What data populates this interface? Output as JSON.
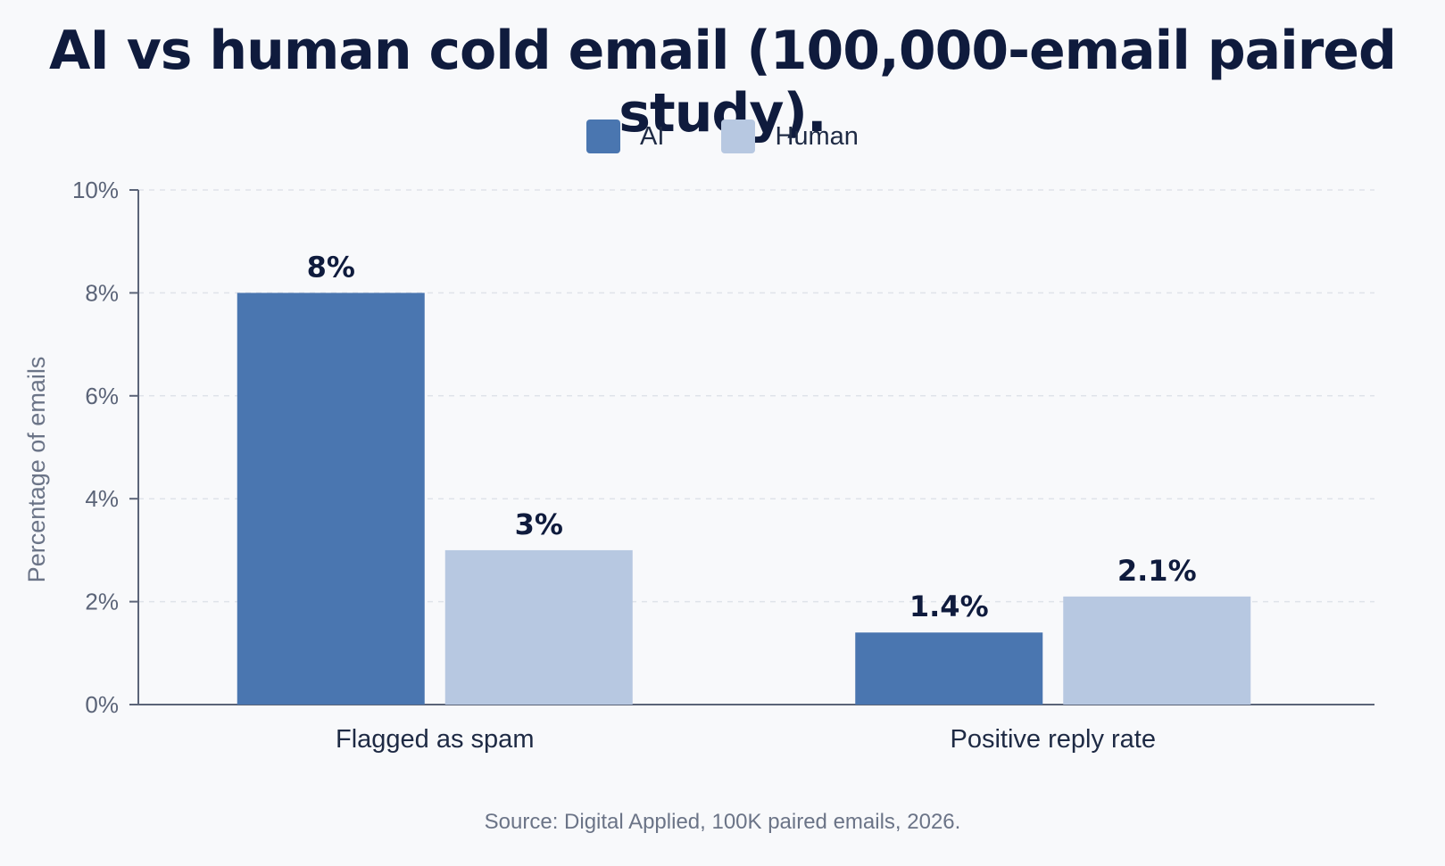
{
  "chart_data": {
    "type": "bar",
    "title": "AI vs human cold email (100,000-email paired study).",
    "ylabel": "Percentage of emails",
    "xlabel": "",
    "ylim": [
      0,
      10
    ],
    "yticks": [
      0,
      2,
      4,
      6,
      8,
      10
    ],
    "ytick_labels": [
      "0%",
      "2%",
      "4%",
      "6%",
      "8%",
      "10%"
    ],
    "grid": true,
    "legend_position": "top-center",
    "categories": [
      "Flagged as spam",
      "Positive reply rate"
    ],
    "series": [
      {
        "name": "AI",
        "color": "#4a76b0",
        "values": [
          8,
          1.4
        ],
        "labels": [
          "8%",
          "1.4%"
        ]
      },
      {
        "name": "Human",
        "color": "#b7c8e1",
        "values": [
          3,
          2.1
        ],
        "labels": [
          "3%",
          "2.1%"
        ]
      }
    ],
    "source": "Source: Digital Applied, 100K paired emails, 2026."
  }
}
